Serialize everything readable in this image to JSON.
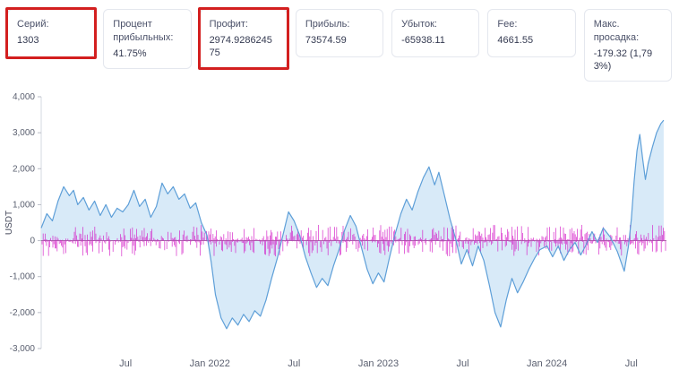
{
  "cards": [
    {
      "label": "Серий:",
      "value": "1303",
      "highlighted": true
    },
    {
      "label": "Процент прибыльных:",
      "value": "41.75%",
      "highlighted": false
    },
    {
      "label": "Профит:",
      "value": "2974.928624575",
      "highlighted": true
    },
    {
      "label": "Прибыль:",
      "value": "73574.59",
      "highlighted": false
    },
    {
      "label": "Убыток:",
      "value": "-65938.11",
      "highlighted": false
    },
    {
      "label": "Fee:",
      "value": "4661.55",
      "highlighted": false
    },
    {
      "label": "Макс. просадка:",
      "value": "-179.32 (1,793%)",
      "highlighted": false
    }
  ],
  "chart_data": {
    "type": "area",
    "title": "",
    "ylabel": "USDT",
    "ylim": [
      -3000,
      4000
    ],
    "xlim": [
      0,
      44.5
    ],
    "grid": false,
    "legend": false,
    "y_ticks": [
      {
        "v": 4000,
        "label": "4,000"
      },
      {
        "v": 3000,
        "label": "3,000"
      },
      {
        "v": 2000,
        "label": "2,000"
      },
      {
        "v": 1000,
        "label": "1,000"
      },
      {
        "v": 0,
        "label": "0"
      },
      {
        "v": -1000,
        "label": "-1,000"
      },
      {
        "v": -2000,
        "label": "-2,000"
      },
      {
        "v": -3000,
        "label": "-3,000"
      }
    ],
    "x_ticks": [
      {
        "t": 6,
        "label": "Jul"
      },
      {
        "t": 12,
        "label": "Jan 2022"
      },
      {
        "t": 18,
        "label": "Jul"
      },
      {
        "t": 24,
        "label": "Jan 2023"
      },
      {
        "t": 30,
        "label": "Jul"
      },
      {
        "t": 36,
        "label": "Jan 2024"
      },
      {
        "t": 42,
        "label": "Jul"
      }
    ],
    "series": [
      {
        "name": "cumulative-profit",
        "type": "area",
        "line_color": "#5e9fd8",
        "fill_color": "#d6e9f8",
        "points": [
          [
            0,
            350
          ],
          [
            0.4,
            750
          ],
          [
            0.8,
            550
          ],
          [
            1.2,
            1100
          ],
          [
            1.6,
            1500
          ],
          [
            2,
            1250
          ],
          [
            2.3,
            1400
          ],
          [
            2.6,
            1000
          ],
          [
            3,
            1200
          ],
          [
            3.4,
            850
          ],
          [
            3.8,
            1100
          ],
          [
            4.2,
            700
          ],
          [
            4.6,
            1000
          ],
          [
            5,
            650
          ],
          [
            5.4,
            900
          ],
          [
            5.8,
            800
          ],
          [
            6.2,
            1000
          ],
          [
            6.6,
            1400
          ],
          [
            7,
            950
          ],
          [
            7.4,
            1150
          ],
          [
            7.8,
            650
          ],
          [
            8.2,
            950
          ],
          [
            8.6,
            1600
          ],
          [
            9,
            1300
          ],
          [
            9.4,
            1500
          ],
          [
            9.8,
            1150
          ],
          [
            10.2,
            1300
          ],
          [
            10.6,
            900
          ],
          [
            11,
            1050
          ],
          [
            11.4,
            500
          ],
          [
            11.8,
            150
          ],
          [
            12.1,
            -600
          ],
          [
            12.4,
            -1500
          ],
          [
            12.8,
            -2150
          ],
          [
            13.2,
            -2450
          ],
          [
            13.6,
            -2150
          ],
          [
            14,
            -2350
          ],
          [
            14.4,
            -2050
          ],
          [
            14.8,
            -2250
          ],
          [
            15.2,
            -1950
          ],
          [
            15.6,
            -2100
          ],
          [
            16,
            -1650
          ],
          [
            16.4,
            -1050
          ],
          [
            16.8,
            -500
          ],
          [
            17.2,
            150
          ],
          [
            17.6,
            800
          ],
          [
            18,
            550
          ],
          [
            18.4,
            150
          ],
          [
            18.8,
            -450
          ],
          [
            19.2,
            -900
          ],
          [
            19.6,
            -1300
          ],
          [
            20,
            -1050
          ],
          [
            20.4,
            -1250
          ],
          [
            20.8,
            -700
          ],
          [
            21.2,
            -250
          ],
          [
            21.6,
            300
          ],
          [
            22,
            700
          ],
          [
            22.4,
            400
          ],
          [
            22.8,
            -200
          ],
          [
            23.2,
            -800
          ],
          [
            23.6,
            -1200
          ],
          [
            24,
            -900
          ],
          [
            24.4,
            -1150
          ],
          [
            24.8,
            -450
          ],
          [
            25.2,
            200
          ],
          [
            25.6,
            750
          ],
          [
            26,
            1150
          ],
          [
            26.4,
            850
          ],
          [
            26.8,
            1350
          ],
          [
            27.2,
            1750
          ],
          [
            27.6,
            2050
          ],
          [
            28,
            1550
          ],
          [
            28.3,
            1900
          ],
          [
            28.7,
            1250
          ],
          [
            29.1,
            600
          ],
          [
            29.5,
            50
          ],
          [
            29.9,
            -650
          ],
          [
            30.3,
            -250
          ],
          [
            30.7,
            -700
          ],
          [
            31.1,
            -150
          ],
          [
            31.5,
            -550
          ],
          [
            31.9,
            -1250
          ],
          [
            32.3,
            -2000
          ],
          [
            32.7,
            -2400
          ],
          [
            33.1,
            -1650
          ],
          [
            33.5,
            -1050
          ],
          [
            33.9,
            -1450
          ],
          [
            34.3,
            -1150
          ],
          [
            34.7,
            -800
          ],
          [
            35.1,
            -500
          ],
          [
            35.5,
            -250
          ],
          [
            36,
            -150
          ],
          [
            36.4,
            -450
          ],
          [
            36.8,
            -150
          ],
          [
            37.2,
            -550
          ],
          [
            37.6,
            -250
          ],
          [
            38,
            -50
          ],
          [
            38.4,
            -400
          ],
          [
            38.8,
            -100
          ],
          [
            39.2,
            250
          ],
          [
            39.6,
            -50
          ],
          [
            40,
            350
          ],
          [
            40.5,
            100
          ],
          [
            41,
            -300
          ],
          [
            41.5,
            -850
          ],
          [
            41.8,
            -150
          ],
          [
            42,
            600
          ],
          [
            42.2,
            1650
          ],
          [
            42.4,
            2500
          ],
          [
            42.6,
            2950
          ],
          [
            42.8,
            2300
          ],
          [
            43,
            1700
          ],
          [
            43.2,
            2150
          ],
          [
            43.5,
            2600
          ],
          [
            43.8,
            3000
          ],
          [
            44.1,
            3250
          ],
          [
            44.3,
            3350
          ]
        ]
      },
      {
        "name": "per-trade-pnl-ticks",
        "type": "spikes",
        "color": "#d419c6",
        "typical_amplitude_usdt": 120,
        "max_amplitude_usdt": 430
      }
    ],
    "zero_line_color": "#3a3a3a"
  }
}
